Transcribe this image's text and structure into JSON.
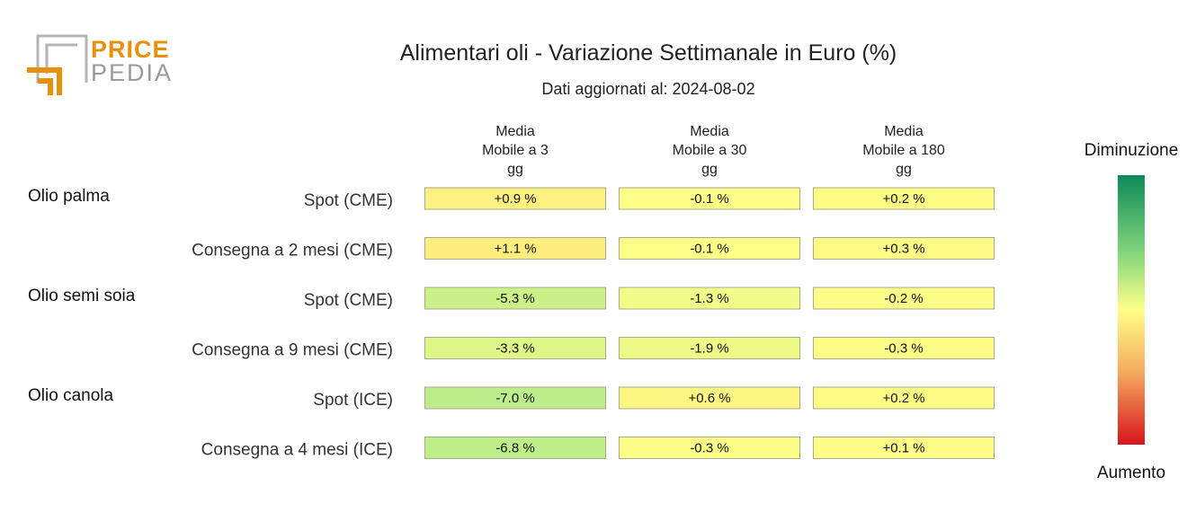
{
  "logo": {
    "line1": "PRICE",
    "line2": "PEDIA",
    "accent": "#e8900c",
    "gray": "#a0a0a0"
  },
  "chart_data": {
    "type": "heatmap",
    "title": "Alimentari oli - Variazione Settimanale in Euro (%)",
    "subtitle": "Dati aggiornati al: 2024-08-02",
    "columns": [
      [
        "Media",
        "Mobile a 3",
        "gg"
      ],
      [
        "Media",
        "Mobile a 30",
        "gg"
      ],
      [
        "Media",
        "Mobile a 180",
        "gg"
      ]
    ],
    "groups": [
      {
        "name": "Olio palma",
        "rows": [
          {
            "label": "Spot (CME)",
            "values": [
              0.9,
              -0.1,
              0.2
            ],
            "texts": [
              "+0.9 %",
              "-0.1 %",
              "+0.2 %"
            ]
          },
          {
            "label": "Consegna a 2 mesi (CME)",
            "values": [
              1.1,
              -0.1,
              0.3
            ],
            "texts": [
              "+1.1 %",
              "-0.1 %",
              "+0.3 %"
            ]
          }
        ]
      },
      {
        "name": "Olio semi soia",
        "rows": [
          {
            "label": "Spot (CME)",
            "values": [
              -5.3,
              -1.3,
              -0.2
            ],
            "texts": [
              "-5.3 %",
              "-1.3 %",
              "-0.2 %"
            ]
          },
          {
            "label": "Consegna a 9 mesi (CME)",
            "values": [
              -3.3,
              -1.9,
              -0.3
            ],
            "texts": [
              "-3.3 %",
              "-1.9 %",
              "-0.3 %"
            ]
          }
        ]
      },
      {
        "name": "Olio canola",
        "rows": [
          {
            "label": "Spot (ICE)",
            "values": [
              -7.0,
              0.6,
              0.2
            ],
            "texts": [
              "-7.0 %",
              "+0.6 %",
              "+0.2 %"
            ]
          },
          {
            "label": "Consegna a 4 mesi (ICE)",
            "values": [
              -6.8,
              -0.3,
              0.1
            ],
            "texts": [
              "-6.8 %",
              "-0.3 %",
              "+0.1 %"
            ]
          }
        ]
      }
    ],
    "legend": {
      "top_label": "Diminuzione",
      "bottom_label": "Aumento",
      "placement": "right"
    },
    "colors": {
      "decrease": "#0d8a5a",
      "mid_green": "#a8e88a",
      "neutral": "#ffff88",
      "mid_orange": "#f5b060",
      "increase": "#d8141e"
    }
  }
}
